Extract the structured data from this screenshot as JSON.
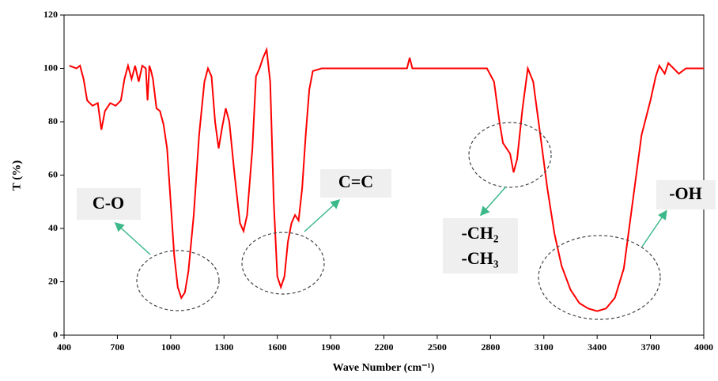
{
  "chart_data": {
    "type": "line",
    "xlabel": "Wave Number (cm⁻¹)",
    "ylabel": "T (%)",
    "xlim": [
      400,
      4000
    ],
    "xticks": [
      400,
      700,
      1000,
      1300,
      1600,
      1900,
      2200,
      2500,
      2800,
      3100,
      3400,
      3700,
      4000
    ],
    "ylim": [
      0,
      120
    ],
    "yticks": [
      0,
      20,
      40,
      60,
      80,
      100,
      120
    ],
    "series": [
      {
        "name": "T",
        "color": "#ff0000",
        "x": [
          430,
          470,
          490,
          510,
          530,
          560,
          590,
          610,
          630,
          660,
          690,
          720,
          740,
          760,
          780,
          800,
          820,
          840,
          860,
          870,
          880,
          890,
          900,
          920,
          940,
          960,
          980,
          1000,
          1020,
          1040,
          1060,
          1080,
          1100,
          1130,
          1160,
          1190,
          1210,
          1230,
          1250,
          1270,
          1290,
          1310,
          1330,
          1360,
          1390,
          1410,
          1430,
          1460,
          1480,
          1500,
          1520,
          1540,
          1560,
          1580,
          1600,
          1620,
          1640,
          1660,
          1680,
          1700,
          1720,
          1740,
          1760,
          1780,
          1800,
          1850,
          2000,
          2200,
          2330,
          2345,
          2360,
          2500,
          2700,
          2780,
          2820,
          2850,
          2870,
          2890,
          2910,
          2930,
          2950,
          2980,
          3010,
          3040,
          3080,
          3120,
          3160,
          3200,
          3250,
          3300,
          3350,
          3400,
          3450,
          3500,
          3550,
          3600,
          3650,
          3700,
          3730,
          3750,
          3780,
          3800,
          3830,
          3860,
          3900,
          4000
        ],
        "values": [
          101,
          100,
          101,
          96,
          88,
          86,
          87,
          77,
          84,
          87,
          86,
          88,
          96,
          101,
          96,
          101,
          95,
          101,
          100,
          88,
          101,
          99,
          96,
          85,
          84,
          79,
          70,
          50,
          30,
          18,
          14,
          16,
          24,
          45,
          75,
          95,
          100,
          97,
          80,
          70,
          78,
          85,
          80,
          60,
          42,
          39,
          45,
          70,
          97,
          100,
          104,
          107,
          95,
          50,
          22,
          18,
          22,
          35,
          42,
          45,
          43,
          55,
          75,
          92,
          99,
          100,
          100,
          100,
          100,
          104,
          100,
          100,
          100,
          100,
          95,
          80,
          72,
          70,
          68,
          61,
          66,
          85,
          100,
          95,
          75,
          55,
          38,
          26,
          17,
          12,
          10,
          9,
          10,
          14,
          25,
          50,
          75,
          88,
          97,
          101,
          98,
          102,
          100,
          98,
          100,
          100
        ]
      }
    ],
    "annotations": [
      "C-O",
      "C=C",
      "-CH₂",
      "-CH₃",
      "-OH"
    ]
  }
}
